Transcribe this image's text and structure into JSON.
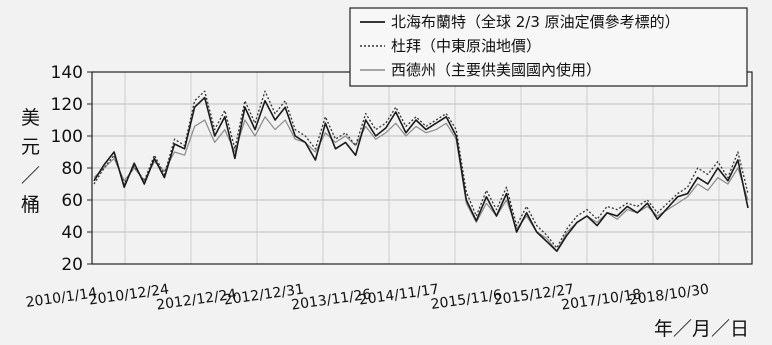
{
  "chart_data": {
    "type": "line",
    "title": "",
    "ylabel": "美元／桶",
    "xlabel": "年／月／日",
    "ylim": [
      20,
      140
    ],
    "yticks": [
      20,
      40,
      60,
      80,
      100,
      120,
      140
    ],
    "x_tick_labels": [
      "2010/1/14",
      "2010/12/24",
      "2012/12/24",
      "2012/12/31",
      "2013/11/26",
      "2014/11/17",
      "2015/11/6",
      "2015/12/27",
      "2017/10/18",
      "2018/10/30"
    ],
    "grid": true,
    "legend_position": "top-right",
    "series": [
      {
        "name": "北海布蘭特（全球 2/3 原油定價參考標的）",
        "style": "solid-dark",
        "values": [
          72,
          82,
          90,
          68,
          83,
          70,
          86,
          74,
          95,
          92,
          118,
          124,
          100,
          112,
          86,
          118,
          104,
          122,
          110,
          118,
          100,
          96,
          85,
          108,
          92,
          96,
          88,
          110,
          100,
          105,
          115,
          102,
          110,
          104,
          108,
          112,
          100,
          60,
          47,
          62,
          50,
          64,
          40,
          52,
          40,
          34,
          28,
          38,
          46,
          50,
          44,
          52,
          50,
          56,
          52,
          58,
          48,
          55,
          62,
          64,
          74,
          70,
          80,
          72,
          85,
          55
        ]
      },
      {
        "name": "杜拜（中東原油地價）",
        "style": "dotted",
        "values": [
          70,
          80,
          88,
          70,
          81,
          72,
          88,
          76,
          98,
          94,
          122,
          128,
          104,
          116,
          92,
          122,
          108,
          128,
          114,
          122,
          104,
          100,
          92,
          112,
          98,
          102,
          94,
          114,
          104,
          108,
          118,
          106,
          112,
          106,
          110,
          114,
          104,
          65,
          50,
          66,
          54,
          68,
          44,
          56,
          44,
          38,
          30,
          42,
          50,
          54,
          48,
          56,
          54,
          58,
          56,
          60,
          52,
          58,
          64,
          68,
          80,
          76,
          84,
          74,
          90,
          64
        ]
      },
      {
        "name": "西德州（主要供美國國內使用）",
        "style": "solid-light",
        "values": [
          74,
          80,
          86,
          72,
          80,
          72,
          84,
          78,
          90,
          88,
          106,
          110,
          96,
          104,
          90,
          110,
          100,
          112,
          104,
          110,
          98,
          96,
          90,
          102,
          96,
          100,
          94,
          106,
          98,
          102,
          108,
          100,
          106,
          102,
          104,
          108,
          98,
          58,
          46,
          58,
          50,
          60,
          42,
          50,
          40,
          36,
          28,
          40,
          46,
          50,
          46,
          52,
          48,
          54,
          52,
          56,
          50,
          54,
          58,
          62,
          70,
          66,
          74,
          70,
          80,
          60
        ]
      }
    ]
  }
}
